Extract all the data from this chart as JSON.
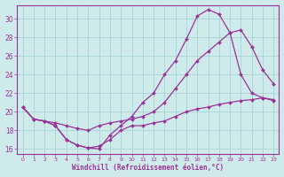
{
  "xlabel": "Windchill (Refroidissement éolien,°C)",
  "background_color": "#ceeaea",
  "line_color": "#993399",
  "grid_color": "#a8d4d4",
  "xlim": [
    -0.5,
    23.5
  ],
  "ylim": [
    15.5,
    31.5
  ],
  "xticks": [
    0,
    1,
    2,
    3,
    4,
    5,
    6,
    7,
    8,
    9,
    10,
    11,
    12,
    13,
    14,
    15,
    16,
    17,
    18,
    19,
    20,
    21,
    22,
    23
  ],
  "yticks": [
    16,
    18,
    20,
    22,
    24,
    26,
    28,
    30
  ],
  "series": [
    {
      "x": [
        0,
        1,
        2,
        3,
        4,
        5,
        6,
        7,
        8,
        9,
        10,
        11,
        12,
        13,
        14,
        15,
        16,
        17,
        18,
        19,
        20,
        21,
        22,
        23
      ],
      "y": [
        20.5,
        19.2,
        19.0,
        18.5,
        17.0,
        16.4,
        16.1,
        16.0,
        17.5,
        18.5,
        19.5,
        21.0,
        22.0,
        24.0,
        25.5,
        27.8,
        30.3,
        31.0,
        30.5,
        28.5,
        24.0,
        22.0,
        21.5,
        21.2
      ]
    },
    {
      "x": [
        0,
        1,
        2,
        3,
        4,
        5,
        6,
        7,
        8,
        9,
        10,
        11,
        12,
        13,
        14,
        15,
        16,
        17,
        18,
        19,
        20,
        21,
        22,
        23
      ],
      "y": [
        20.5,
        19.2,
        19.0,
        18.5,
        17.0,
        16.4,
        16.1,
        16.3,
        17.0,
        18.0,
        18.5,
        18.5,
        18.8,
        19.0,
        19.5,
        20.0,
        20.3,
        20.5,
        20.8,
        21.0,
        21.2,
        21.3,
        21.5,
        21.3
      ]
    },
    {
      "x": [
        0,
        1,
        2,
        3,
        4,
        5,
        6,
        7,
        8,
        9,
        10,
        11,
        12,
        13,
        14,
        15,
        16,
        17,
        18,
        19,
        20,
        21,
        22,
        23
      ],
      "y": [
        20.5,
        19.2,
        19.0,
        18.8,
        18.5,
        18.2,
        18.0,
        18.5,
        18.8,
        19.0,
        19.2,
        19.5,
        20.0,
        21.0,
        22.5,
        24.0,
        25.5,
        26.5,
        27.5,
        28.5,
        28.8,
        27.0,
        24.5,
        23.0
      ]
    }
  ]
}
